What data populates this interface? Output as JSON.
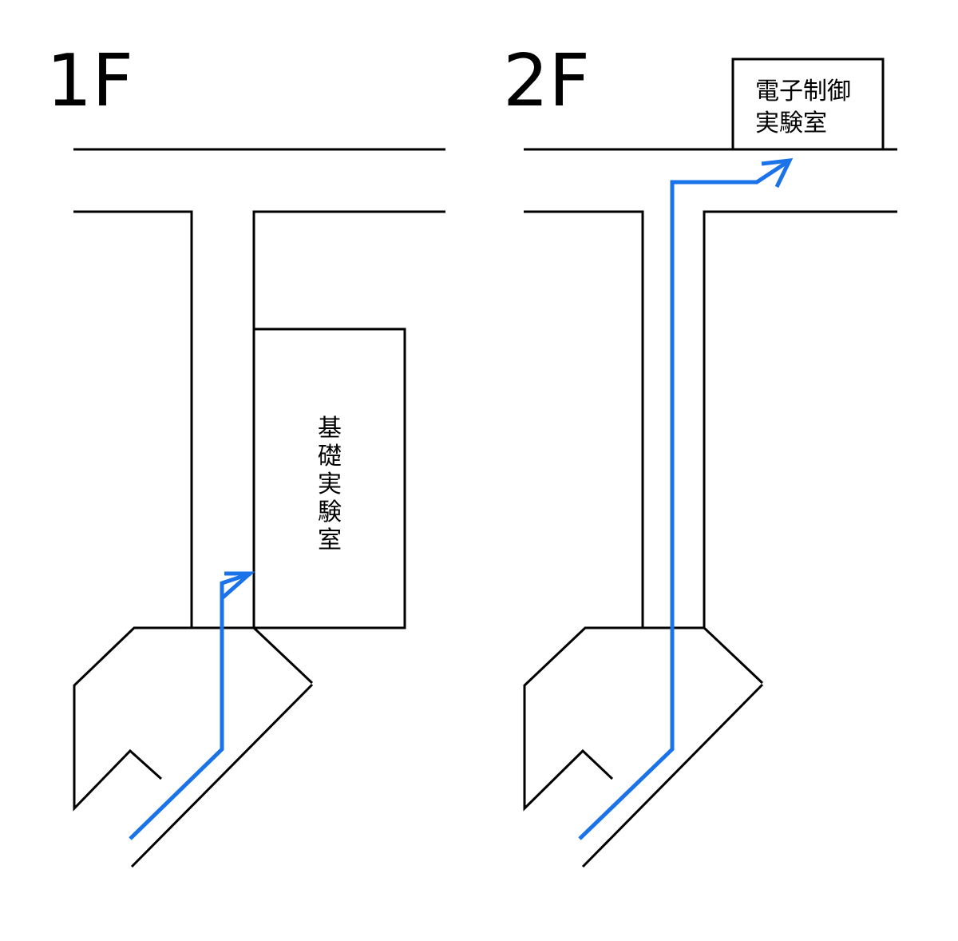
{
  "floors": [
    {
      "label": "1F",
      "room": {
        "name_chars": [
          "基",
          "礎",
          "実",
          "験",
          "室"
        ]
      }
    },
    {
      "label": "2F",
      "room": {
        "name_lines": [
          "電子制御",
          "実験室"
        ]
      }
    }
  ],
  "colors": {
    "route": "#1a73e8",
    "walls": "#000000"
  }
}
